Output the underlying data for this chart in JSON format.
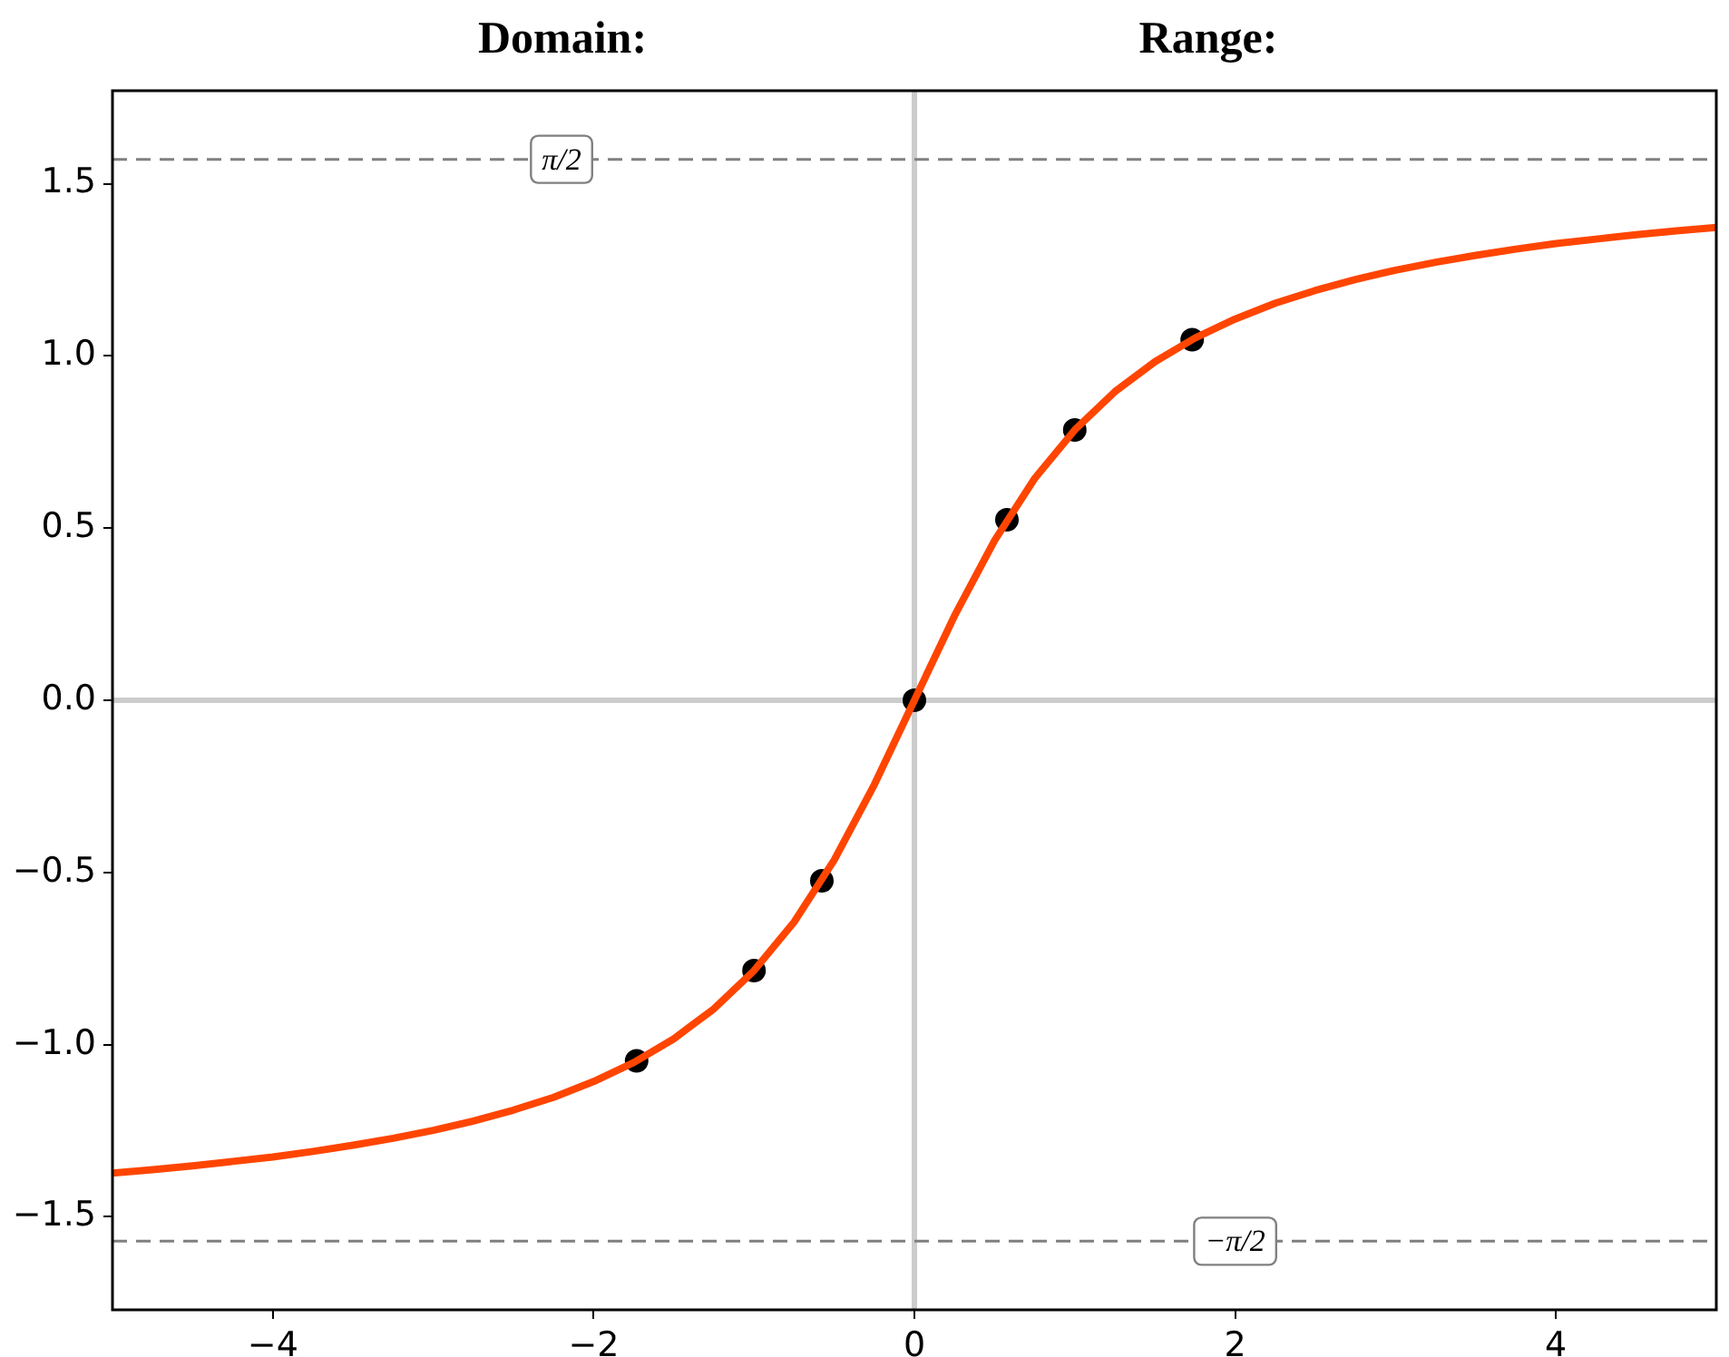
{
  "chart_data": {
    "type": "line",
    "title": "Domain:",
    "subtitle": "Range:",
    "xlim": [
      -5,
      5
    ],
    "ylim": [
      -1.77,
      1.77
    ],
    "xticks": [
      {
        "value": -4,
        "label": "−4"
      },
      {
        "value": -2,
        "label": "−2"
      },
      0,
      2,
      4
    ],
    "yticks": [
      {
        "value": -1.5,
        "label": "−1.5"
      },
      {
        "value": -1,
        "label": "−1.0"
      },
      {
        "value": -0.5,
        "label": "−0.5"
      },
      {
        "value": 0,
        "label": "0.0"
      },
      {
        "value": 0.5,
        "label": "0.5"
      },
      {
        "value": 1,
        "label": "1.0"
      },
      {
        "value": 1.5,
        "label": "1.5"
      }
    ],
    "grid": false,
    "legend": false,
    "series": [
      {
        "color": "#ff4500",
        "marker": "none",
        "x": [
          -5,
          -4.75,
          -4.5,
          -4.25,
          -4,
          -3.75,
          -3.5,
          -3.25,
          -3,
          -2.75,
          -2.5,
          -2.25,
          -2,
          -1.75,
          -1.5,
          -1.25,
          -1,
          -0.75,
          -0.5,
          -0.25,
          0,
          0.25,
          0.5,
          0.75,
          1,
          1.25,
          1.5,
          1.75,
          2,
          2.25,
          2.5,
          2.75,
          3,
          3.25,
          3.5,
          3.75,
          4,
          4.25,
          4.5,
          4.75,
          5
        ],
        "values": [
          -1.373,
          -1.363,
          -1.352,
          -1.339,
          -1.326,
          -1.31,
          -1.292,
          -1.272,
          -1.249,
          -1.222,
          -1.19,
          -1.153,
          -1.107,
          -1.052,
          -0.983,
          -0.896,
          -0.785,
          -0.644,
          -0.464,
          -0.245,
          0,
          0.245,
          0.464,
          0.644,
          0.785,
          0.896,
          0.983,
          1.052,
          1.107,
          1.153,
          1.19,
          1.222,
          1.249,
          1.272,
          1.292,
          1.31,
          1.326,
          1.339,
          1.352,
          1.363,
          1.373
        ]
      },
      {
        "type": "scatter",
        "color": "#000000",
        "marker": "circle",
        "x": [
          -1.732,
          -1,
          -0.577,
          0,
          0.577,
          1,
          1.732
        ],
        "values": [
          -1.047,
          -0.785,
          -0.524,
          0,
          0.524,
          0.785,
          1.047
        ]
      }
    ],
    "ref_lines": [
      {
        "axis": "x",
        "value": 0,
        "color": "#cccccc",
        "line_style": "solid"
      },
      {
        "axis": "y",
        "value": 0,
        "color": "#cccccc",
        "line_style": "solid"
      },
      {
        "axis": "y",
        "value": 1.5708,
        "color": "#808080",
        "line_style": "dashed"
      },
      {
        "axis": "y",
        "value": -1.5708,
        "color": "#808080",
        "line_style": "dashed"
      }
    ],
    "annotations": [
      {
        "text": "π/2",
        "x": -2.2,
        "y": 1.5708
      },
      {
        "text": "−π/2",
        "x": 2,
        "y": -1.5708
      }
    ]
  }
}
